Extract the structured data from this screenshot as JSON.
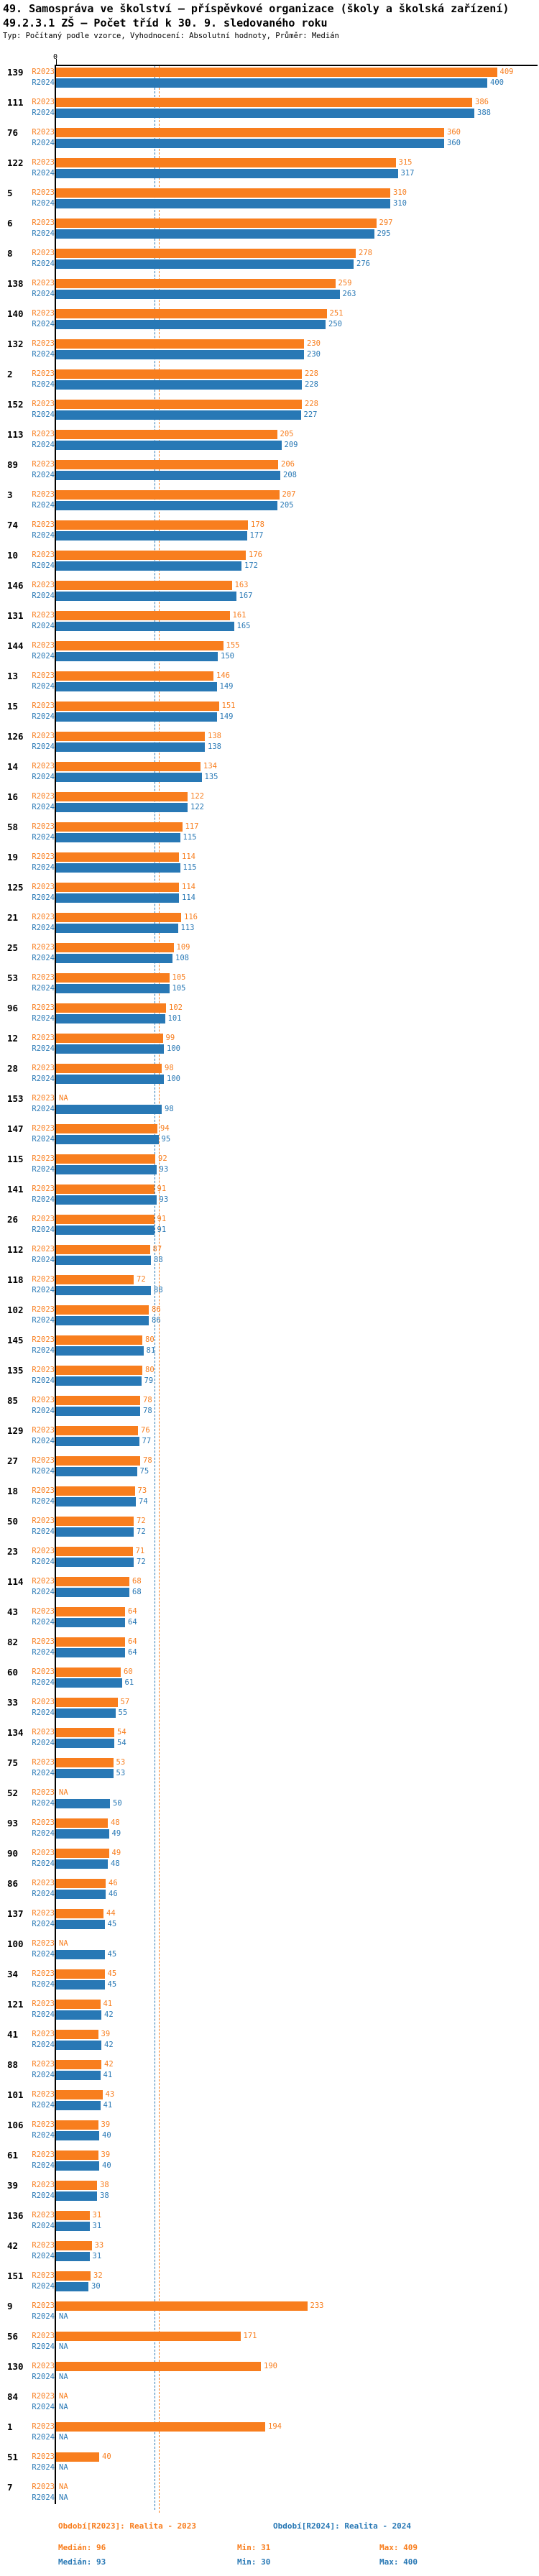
{
  "header": {
    "title1": "49. Samospráva ve školství – příspěvkové organizace (školy a školská zařízení)",
    "title2": "49.2.3.1 ZŠ – Počet tříd k 30. 9. sledovaného roku",
    "meta": "Typ: Počítaný podle vzorce, Vyhodnocení: Absolutní hodnoty, Průměr: Medián"
  },
  "axis": {
    "zero_label": "0"
  },
  "series_labels": {
    "r2023": "R2023",
    "r2024": "R2024"
  },
  "na_label": "NA",
  "colors": {
    "r2023": "#F87E1E",
    "r2024": "#2878B5"
  },
  "footer": {
    "legend_r2023": "Období[R2023]: Realita - 2023",
    "legend_r2024": "Období[R2024]: Realita - 2024",
    "median_r2023": "Medián: 96",
    "min_r2023": "Min: 31",
    "max_r2023": "Max: 409",
    "median_r2024": "Medián: 93",
    "min_r2024": "Min: 30",
    "max_r2024": "Max: 400"
  },
  "chart_data": {
    "type": "bar",
    "orientation": "horizontal",
    "series": [
      "R2023",
      "R2024"
    ],
    "legend_position": "bottom",
    "xlim": [
      0,
      409
    ],
    "medians": {
      "R2023": 96,
      "R2024": 93
    },
    "mins": {
      "R2023": 31,
      "R2024": 30
    },
    "maxs": {
      "R2023": 409,
      "R2024": 400
    },
    "rows": [
      {
        "id": "139",
        "r2023": 409,
        "r2024": 400
      },
      {
        "id": "111",
        "r2023": 386,
        "r2024": 388
      },
      {
        "id": "76",
        "r2023": 360,
        "r2024": 360
      },
      {
        "id": "122",
        "r2023": 315,
        "r2024": 317
      },
      {
        "id": "5",
        "r2023": 310,
        "r2024": 310
      },
      {
        "id": "6",
        "r2023": 297,
        "r2024": 295
      },
      {
        "id": "8",
        "r2023": 278,
        "r2024": 276
      },
      {
        "id": "138",
        "r2023": 259,
        "r2024": 263
      },
      {
        "id": "140",
        "r2023": 251,
        "r2024": 250
      },
      {
        "id": "132",
        "r2023": 230,
        "r2024": 230
      },
      {
        "id": "2",
        "r2023": 228,
        "r2024": 228
      },
      {
        "id": "152",
        "r2023": 228,
        "r2024": 227
      },
      {
        "id": "113",
        "r2023": 205,
        "r2024": 209
      },
      {
        "id": "89",
        "r2023": 206,
        "r2024": 208
      },
      {
        "id": "3",
        "r2023": 207,
        "r2024": 205
      },
      {
        "id": "74",
        "r2023": 178,
        "r2024": 177
      },
      {
        "id": "10",
        "r2023": 176,
        "r2024": 172
      },
      {
        "id": "146",
        "r2023": 163,
        "r2024": 167
      },
      {
        "id": "131",
        "r2023": 161,
        "r2024": 165
      },
      {
        "id": "144",
        "r2023": 155,
        "r2024": 150
      },
      {
        "id": "13",
        "r2023": 146,
        "r2024": 149
      },
      {
        "id": "15",
        "r2023": 151,
        "r2024": 149
      },
      {
        "id": "126",
        "r2023": 138,
        "r2024": 138
      },
      {
        "id": "14",
        "r2023": 134,
        "r2024": 135
      },
      {
        "id": "16",
        "r2023": 122,
        "r2024": 122
      },
      {
        "id": "58",
        "r2023": 117,
        "r2024": 115
      },
      {
        "id": "19",
        "r2023": 114,
        "r2024": 115
      },
      {
        "id": "125",
        "r2023": 114,
        "r2024": 114
      },
      {
        "id": "21",
        "r2023": 116,
        "r2024": 113
      },
      {
        "id": "25",
        "r2023": 109,
        "r2024": 108
      },
      {
        "id": "53",
        "r2023": 105,
        "r2024": 105
      },
      {
        "id": "96",
        "r2023": 102,
        "r2024": 101
      },
      {
        "id": "12",
        "r2023": 99,
        "r2024": 100
      },
      {
        "id": "28",
        "r2023": 98,
        "r2024": 100
      },
      {
        "id": "153",
        "r2023": null,
        "r2024": 98
      },
      {
        "id": "147",
        "r2023": 94,
        "r2024": 95
      },
      {
        "id": "115",
        "r2023": 92,
        "r2024": 93
      },
      {
        "id": "141",
        "r2023": 91,
        "r2024": 93
      },
      {
        "id": "26",
        "r2023": 91,
        "r2024": 91
      },
      {
        "id": "112",
        "r2023": 87,
        "r2024": 88
      },
      {
        "id": "118",
        "r2023": 72,
        "r2024": 88
      },
      {
        "id": "102",
        "r2023": 86,
        "r2024": 86
      },
      {
        "id": "145",
        "r2023": 80,
        "r2024": 81
      },
      {
        "id": "135",
        "r2023": 80,
        "r2024": 79
      },
      {
        "id": "85",
        "r2023": 78,
        "r2024": 78
      },
      {
        "id": "129",
        "r2023": 76,
        "r2024": 77
      },
      {
        "id": "27",
        "r2023": 78,
        "r2024": 75
      },
      {
        "id": "18",
        "r2023": 73,
        "r2024": 74
      },
      {
        "id": "50",
        "r2023": 72,
        "r2024": 72
      },
      {
        "id": "23",
        "r2023": 71,
        "r2024": 72
      },
      {
        "id": "114",
        "r2023": 68,
        "r2024": 68
      },
      {
        "id": "43",
        "r2023": 64,
        "r2024": 64
      },
      {
        "id": "82",
        "r2023": 64,
        "r2024": 64
      },
      {
        "id": "60",
        "r2023": 60,
        "r2024": 61
      },
      {
        "id": "33",
        "r2023": 57,
        "r2024": 55
      },
      {
        "id": "134",
        "r2023": 54,
        "r2024": 54
      },
      {
        "id": "75",
        "r2023": 53,
        "r2024": 53
      },
      {
        "id": "52",
        "r2023": null,
        "r2024": 50
      },
      {
        "id": "93",
        "r2023": 48,
        "r2024": 49
      },
      {
        "id": "90",
        "r2023": 49,
        "r2024": 48
      },
      {
        "id": "86",
        "r2023": 46,
        "r2024": 46
      },
      {
        "id": "137",
        "r2023": 44,
        "r2024": 45
      },
      {
        "id": "100",
        "r2023": null,
        "r2024": 45
      },
      {
        "id": "34",
        "r2023": 45,
        "r2024": 45
      },
      {
        "id": "121",
        "r2023": 41,
        "r2024": 42
      },
      {
        "id": "41",
        "r2023": 39,
        "r2024": 42
      },
      {
        "id": "88",
        "r2023": 42,
        "r2024": 41
      },
      {
        "id": "101",
        "r2023": 43,
        "r2024": 41
      },
      {
        "id": "106",
        "r2023": 39,
        "r2024": 40
      },
      {
        "id": "61",
        "r2023": 39,
        "r2024": 40
      },
      {
        "id": "39",
        "r2023": 38,
        "r2024": 38
      },
      {
        "id": "136",
        "r2023": 31,
        "r2024": 31
      },
      {
        "id": "42",
        "r2023": 33,
        "r2024": 31
      },
      {
        "id": "151",
        "r2023": 32,
        "r2024": 30
      },
      {
        "id": "9",
        "r2023": 233,
        "r2024": null
      },
      {
        "id": "56",
        "r2023": 171,
        "r2024": null
      },
      {
        "id": "130",
        "r2023": 190,
        "r2024": null
      },
      {
        "id": "84",
        "r2023": null,
        "r2024": null
      },
      {
        "id": "1",
        "r2023": 194,
        "r2024": null
      },
      {
        "id": "51",
        "r2023": 40,
        "r2024": null
      },
      {
        "id": "7",
        "r2023": null,
        "r2024": null
      }
    ]
  }
}
